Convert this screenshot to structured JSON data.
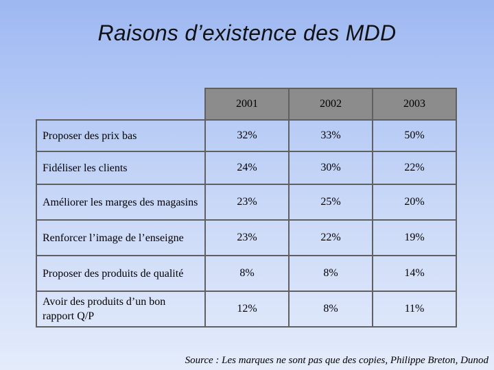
{
  "title": "Raisons d’existence des MDD",
  "table": {
    "years": [
      "2001",
      "2002",
      "2003"
    ],
    "rows": [
      {
        "label": "Proposer des prix bas",
        "values": [
          "32%",
          "33%",
          "50%"
        ]
      },
      {
        "label": "Fidéliser les clients",
        "values": [
          "24%",
          "30%",
          "22%"
        ]
      },
      {
        "label": "Améliorer les marges des magasins",
        "values": [
          "23%",
          "25%",
          "20%"
        ]
      },
      {
        "label": "Renforcer l’image de l’enseigne",
        "values": [
          "23%",
          "22%",
          "19%"
        ]
      },
      {
        "label": "Proposer des produits de qualité",
        "values": [
          "8%",
          "8%",
          "14%"
        ]
      },
      {
        "label": "Avoir des produits d’un bon rapport Q/P",
        "values": [
          "12%",
          "8%",
          "11%"
        ]
      }
    ]
  },
  "source": "Source : Les marques ne sont pas que des copies, Philippe Breton, Dunod"
}
